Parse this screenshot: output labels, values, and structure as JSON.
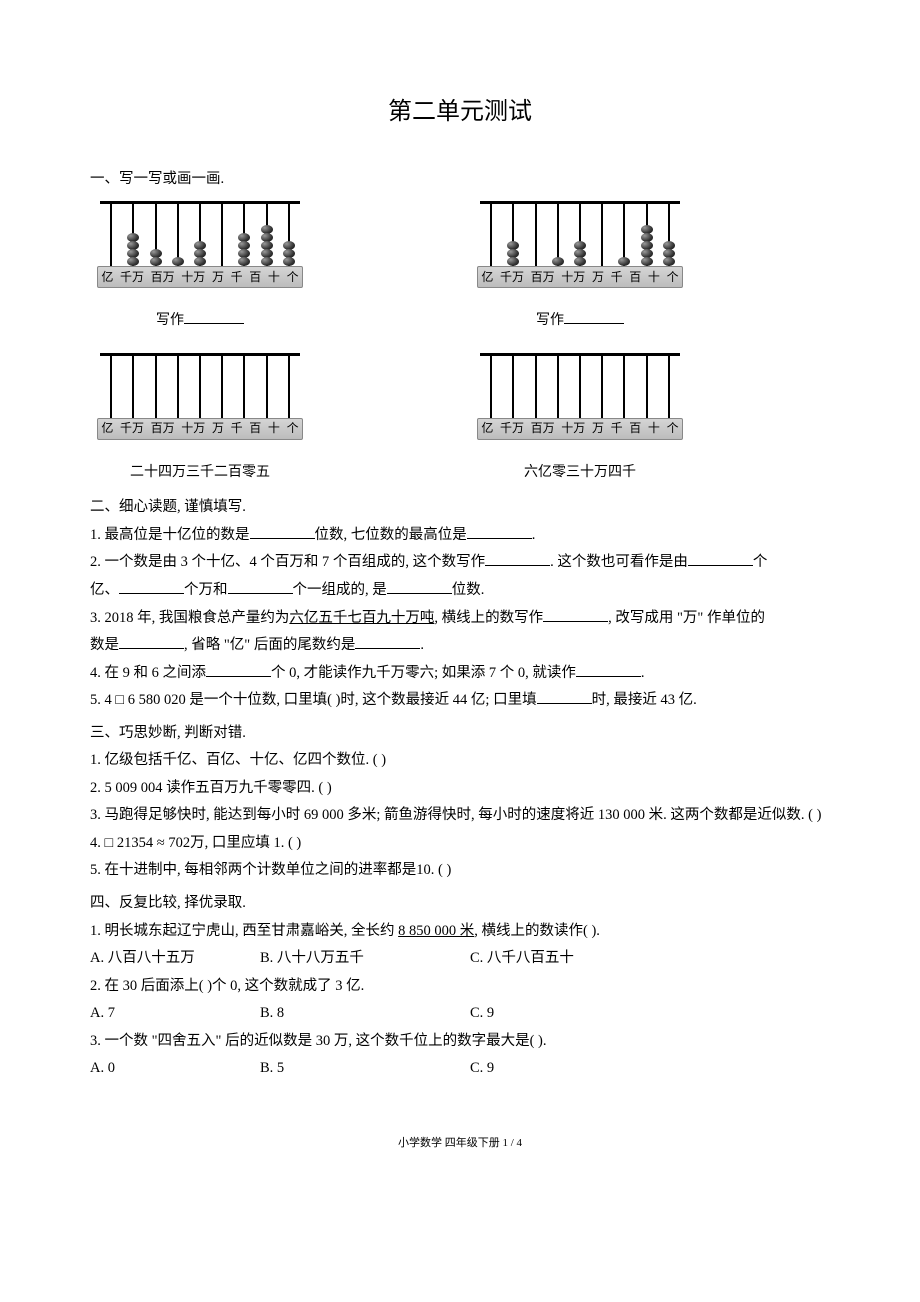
{
  "title": "第二单元测试",
  "s1": {
    "head": "一、写一写或画一画.",
    "units": [
      "亿",
      "千万",
      "百万",
      "十万",
      "万",
      "千",
      "百",
      "十",
      "个"
    ],
    "abacus1_beads": [
      0,
      4,
      2,
      1,
      3,
      0,
      4,
      5,
      3
    ],
    "abacus2_beads": [
      0,
      3,
      0,
      1,
      3,
      0,
      1,
      5,
      3
    ],
    "abacus3_beads": [
      0,
      0,
      0,
      0,
      0,
      0,
      0,
      0,
      0
    ],
    "abacus4_beads": [
      0,
      0,
      0,
      0,
      0,
      0,
      0,
      0,
      0
    ],
    "write_label": "写作",
    "label3": "二十四万三千二百零五",
    "label4": "六亿零三十万四千"
  },
  "s2": {
    "head": "二、细心读题, 谨慎填写.",
    "q1a": "1. 最高位是十亿位的数是",
    "q1b": "位数, 七位数的最高位是",
    "q1c": ".",
    "q2a": "2. 一个数是由 3 个十亿、4 个百万和 7 个百组成的, 这个数写作",
    "q2b": ". 这个数也可看作是由",
    "q2c": "个",
    "q2d": "亿、",
    "q2e": "个万和",
    "q2f": "个一组成的, 是",
    "q2g": "位数.",
    "q3a": "3. 2018 年, 我国粮食总产量约为",
    "q3u": "六亿五千七百九十万吨",
    "q3b": ", 横线上的数写作",
    "q3c": ", 改写成用 \"万\" 作单位的",
    "q3d": "数是",
    "q3e": ", 省略 \"亿\" 后面的尾数约是",
    "q3f": ".",
    "q4a": "4. 在 9 和 6 之间添",
    "q4b": "个 0, 才能读作九千万零六;  如果添 7 个 0, 就读作",
    "q4c": ".",
    "q5a": "5. 4 □ 6 580 020 是一个十位数, 口里填(        )时, 这个数最接近 44 亿;  口里填",
    "q5b": "时, 最接近 43 亿."
  },
  "s3": {
    "head": "三、巧思妙断, 判断对错.",
    "q1": "1. 亿级包括千亿、百亿、十亿、亿四个数位. (        )",
    "q2": "2. 5 009 004 读作五百万九千零零四. (        )",
    "q3": "3. 马跑得足够快时, 能达到每小时 69 000 多米;  箭鱼游得快时, 每小时的速度将近 130 000 米. 这两个数都是近似数. (        )",
    "q4": "4. □ 21354 ≈ 702万, 口里应填 1. (        )",
    "q5": "5. 在十进制中, 每相邻两个计数单位之间的进率都是10. (          )"
  },
  "s4": {
    "head": "四、反复比较, 择优录取.",
    "q1a": "1. 明长城东起辽宁虎山, 西至甘肃嘉峪关, 全长约 ",
    "q1u": "8 850 000 米",
    "q1b": ", 横线上的数读作(        ).",
    "q1oa": "A. 八百八十五万",
    "q1ob": "B. 八十八万五千",
    "q1oc": "C. 八千八百五十",
    "q2": "2. 在 30 后面添上(        )个 0, 这个数就成了 3 亿.",
    "q2oa": "A. 7",
    "q2ob": "B. 8",
    "q2oc": "C. 9",
    "q3": "3. 一个数 \"四舍五入\" 后的近似数是 30 万, 这个数千位上的数字最大是(        ).",
    "q3oa": "A. 0",
    "q3ob": "B. 5",
    "q3oc": "C. 9"
  },
  "footer": "小学数学  四年级下册  1 / 4"
}
